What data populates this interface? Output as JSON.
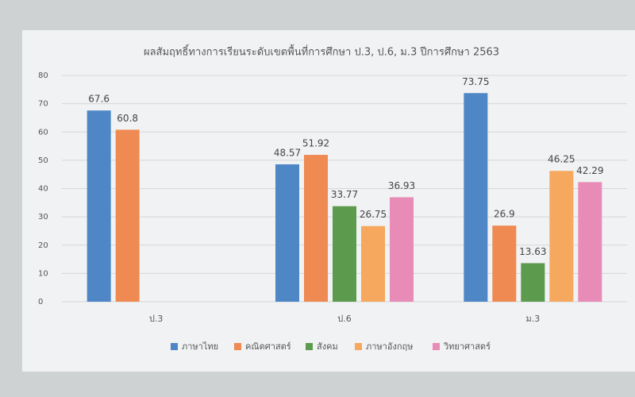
{
  "chart_data": {
    "type": "bar",
    "title": "ผลสัมฤทธิ์ทางการเรียนระดับเขตพื้นที่การศึกษา ป.3, ป.6, ม.3 ปีการศึกษา 2563",
    "categories": [
      "ป.3",
      "ป.6",
      "ม.3"
    ],
    "series": [
      {
        "name": "ภาษาไทย",
        "color": "#4f86c6",
        "values": [
          67.6,
          48.57,
          73.75
        ]
      },
      {
        "name": "คณิตศาสตร์",
        "color": "#ee8a52",
        "values": [
          60.8,
          51.92,
          26.9
        ]
      },
      {
        "name": "สังคม",
        "color": "#5c9a4e",
        "values": [
          null,
          33.77,
          13.63
        ]
      },
      {
        "name": "ภาษาอังกฤษ",
        "color": "#f5a85e",
        "values": [
          null,
          26.75,
          46.25
        ]
      },
      {
        "name": "วิทยาศาสตร์",
        "color": "#e88bb6",
        "values": [
          null,
          36.93,
          42.29
        ]
      }
    ],
    "ylim": [
      0,
      80
    ],
    "yticks": [
      0,
      10,
      20,
      30,
      40,
      50,
      60,
      70,
      80
    ],
    "grid": true
  }
}
